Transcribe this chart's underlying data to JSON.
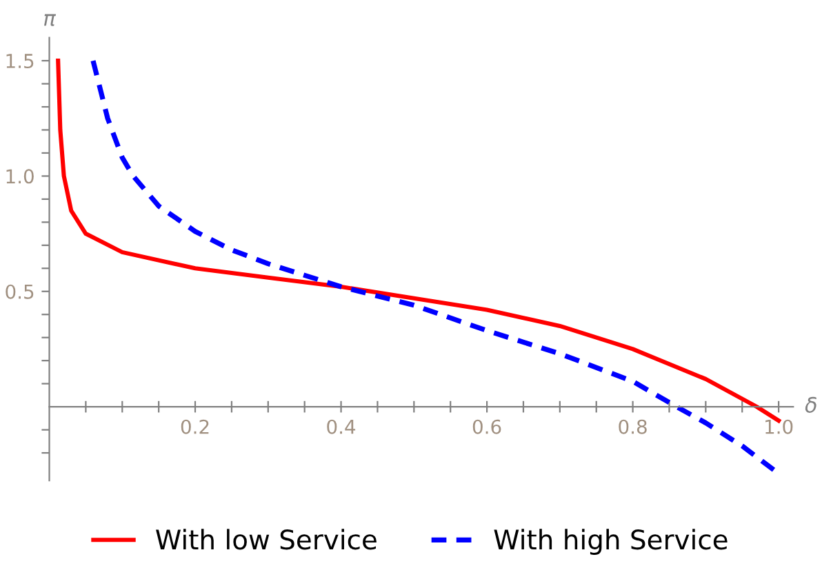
{
  "chart_data": {
    "type": "line",
    "xlabel": "δ",
    "ylabel": "π",
    "xlim": [
      0,
      1.02
    ],
    "ylim": [
      -0.32,
      1.6
    ],
    "xticks": [
      {
        "value": 0.05,
        "label": null
      },
      {
        "value": 0.1,
        "label": null
      },
      {
        "value": 0.15,
        "label": null
      },
      {
        "value": 0.2,
        "label": "0.2"
      },
      {
        "value": 0.25,
        "label": null
      },
      {
        "value": 0.3,
        "label": null
      },
      {
        "value": 0.35,
        "label": null
      },
      {
        "value": 0.4,
        "label": "0.4"
      },
      {
        "value": 0.45,
        "label": null
      },
      {
        "value": 0.5,
        "label": null
      },
      {
        "value": 0.55,
        "label": null
      },
      {
        "value": 0.6,
        "label": "0.6"
      },
      {
        "value": 0.65,
        "label": null
      },
      {
        "value": 0.7,
        "label": null
      },
      {
        "value": 0.75,
        "label": null
      },
      {
        "value": 0.8,
        "label": "0.8"
      },
      {
        "value": 0.85,
        "label": null
      },
      {
        "value": 0.9,
        "label": null
      },
      {
        "value": 0.95,
        "label": null
      },
      {
        "value": 1.0,
        "label": "1.0"
      }
    ],
    "yticks": [
      {
        "value": -0.2,
        "label": null
      },
      {
        "value": -0.1,
        "label": null
      },
      {
        "value": 0.1,
        "label": null
      },
      {
        "value": 0.2,
        "label": null
      },
      {
        "value": 0.3,
        "label": null
      },
      {
        "value": 0.4,
        "label": null
      },
      {
        "value": 0.5,
        "label": "0.5"
      },
      {
        "value": 0.6,
        "label": null
      },
      {
        "value": 0.7,
        "label": null
      },
      {
        "value": 0.8,
        "label": null
      },
      {
        "value": 0.9,
        "label": null
      },
      {
        "value": 1.0,
        "label": "1.0"
      },
      {
        "value": 1.1,
        "label": null
      },
      {
        "value": 1.2,
        "label": null
      },
      {
        "value": 1.3,
        "label": null
      },
      {
        "value": 1.4,
        "label": null
      },
      {
        "value": 1.5,
        "label": "1.5"
      }
    ],
    "legend": "bottom",
    "grid": false,
    "marker": "none",
    "series": [
      {
        "name": "With low Service",
        "color": "#ff0000",
        "line_style": "solid",
        "x": [
          0.012,
          0.015,
          0.02,
          0.03,
          0.05,
          0.1,
          0.2,
          0.3,
          0.4,
          0.5,
          0.6,
          0.7,
          0.8,
          0.9,
          0.97,
          1.0
        ],
        "values": [
          1.5,
          1.2,
          1.0,
          0.85,
          0.75,
          0.67,
          0.6,
          0.56,
          0.52,
          0.47,
          0.42,
          0.35,
          0.25,
          0.12,
          0.0,
          -0.06
        ]
      },
      {
        "name": "With high Service",
        "color": "#0000ff",
        "line_style": "dashed",
        "x": [
          0.06,
          0.08,
          0.1,
          0.115,
          0.15,
          0.2,
          0.25,
          0.3,
          0.35,
          0.4,
          0.45,
          0.5,
          0.6,
          0.7,
          0.8,
          0.86,
          0.9,
          0.95,
          1.0
        ],
        "values": [
          1.5,
          1.25,
          1.08,
          1.0,
          0.87,
          0.76,
          0.68,
          0.62,
          0.57,
          0.52,
          0.48,
          0.44,
          0.33,
          0.23,
          0.11,
          0.0,
          -0.07,
          -0.17,
          -0.29
        ]
      }
    ]
  }
}
